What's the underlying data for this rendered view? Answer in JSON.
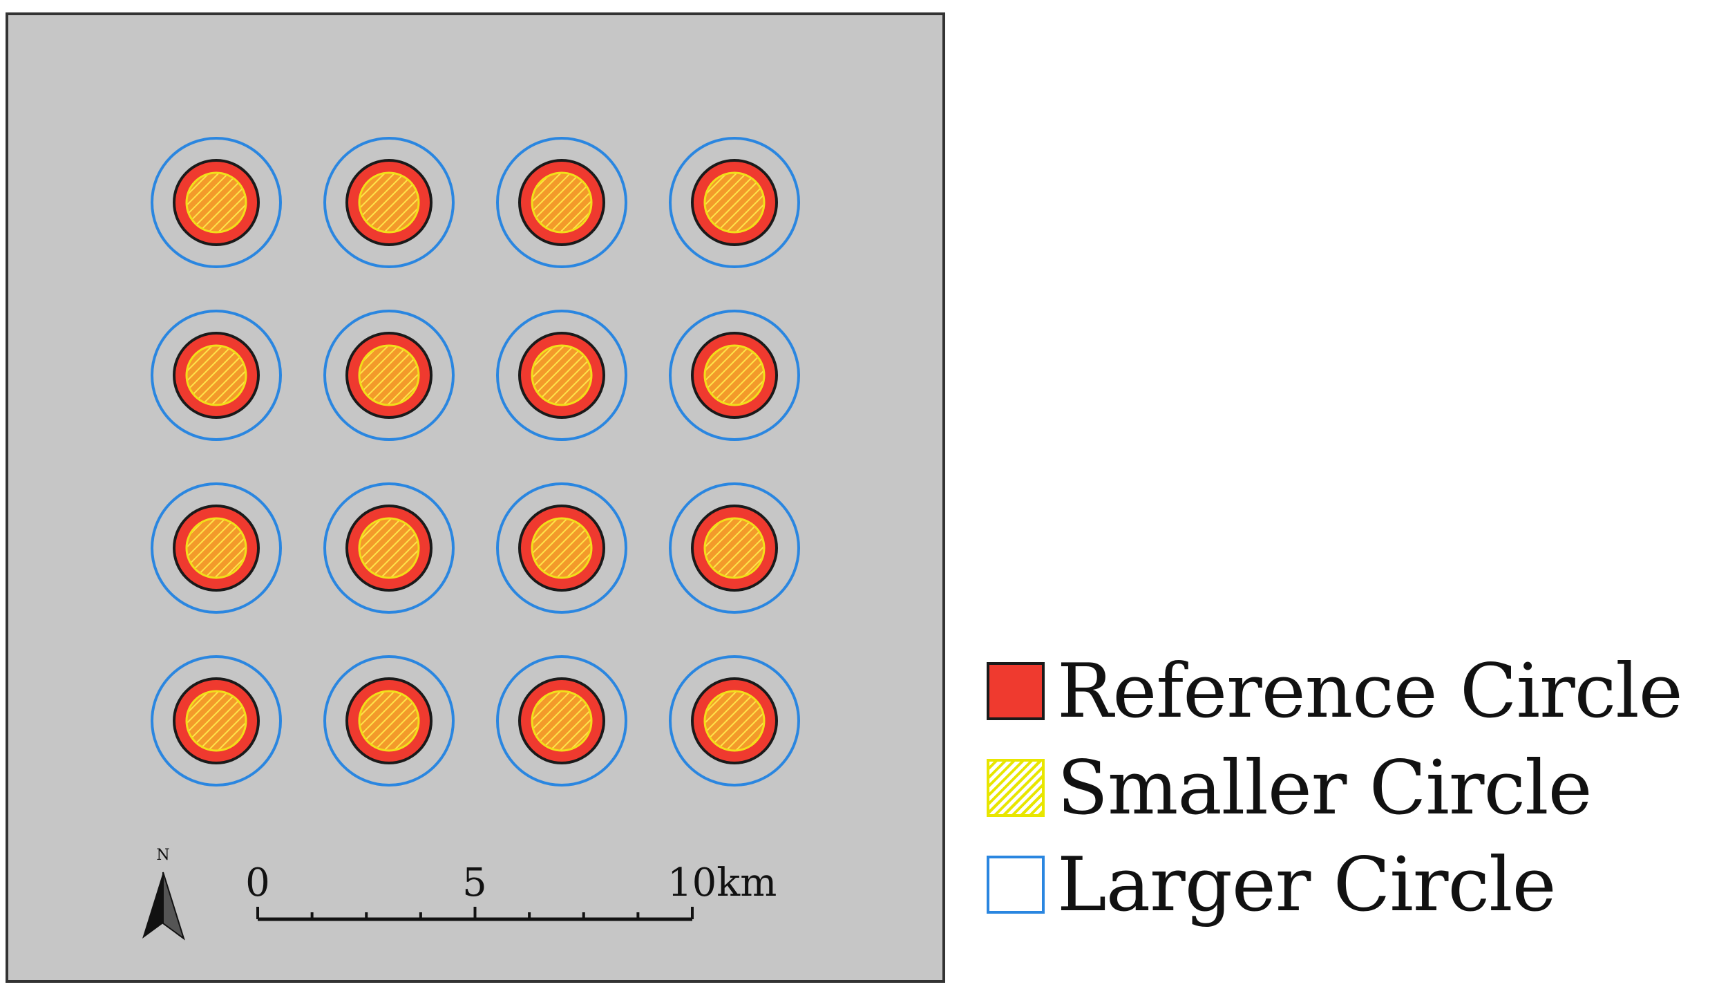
{
  "map": {
    "background_color": "#c6c6c6",
    "frame_color": "#333333",
    "grid": {
      "rows": 4,
      "columns": 4
    },
    "circles": {
      "larger_stroke": "#2a86e0",
      "reference_fill": "#ef3a2f",
      "reference_stroke": "#1a1a1a",
      "smaller_fill": "#f39a2a",
      "smaller_hatch": "#ffe34a",
      "smaller_stroke": "#f2df1a"
    }
  },
  "north_arrow": {
    "label": "N",
    "icon": "north-arrow-icon"
  },
  "scale_bar": {
    "labels": [
      "0",
      "5",
      "10km"
    ],
    "minor_ticks": 8
  },
  "legend": {
    "items": [
      {
        "id": "reference",
        "label": "Reference Circle",
        "color": "#ef3a2f"
      },
      {
        "id": "smaller",
        "label": "Smaller Circle",
        "color": "#e8e600"
      },
      {
        "id": "larger",
        "label": "Larger Circle",
        "color": "#2a86e0"
      }
    ]
  }
}
